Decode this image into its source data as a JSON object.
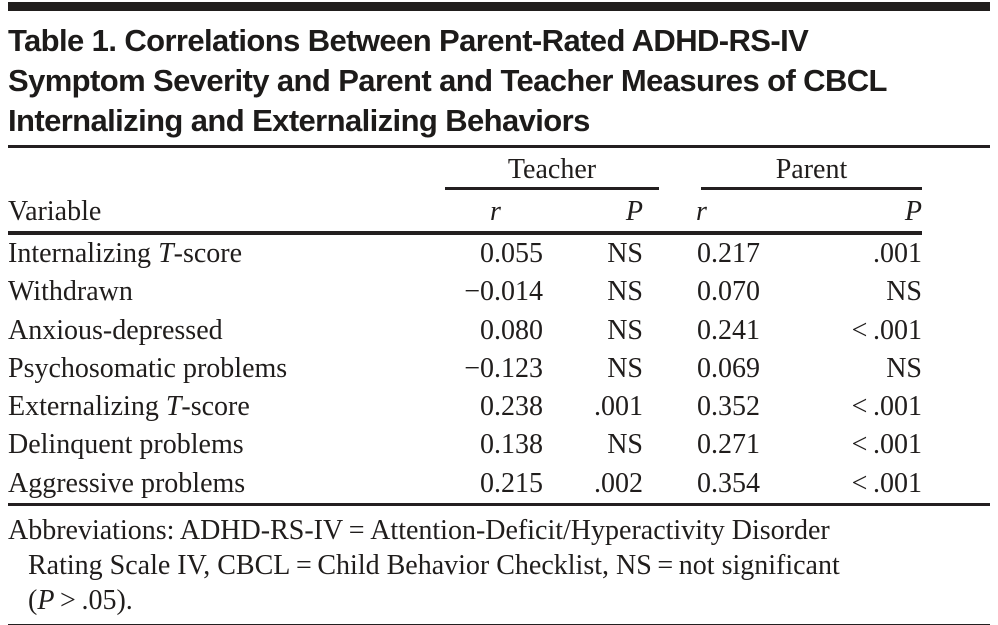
{
  "page": {
    "title_lines": [
      "Table 1. Correlations Between Parent-Rated ADHD-RS-IV",
      "Symptom Severity and Parent and Teacher Measures of CBCL",
      "Internalizing and Externalizing Behaviors"
    ],
    "text_color": "#201d1c",
    "rule_color": "#231f20",
    "background": "#ffffff"
  },
  "table": {
    "groups": {
      "teacher": "Teacher",
      "parent": "Parent"
    },
    "columns": {
      "variable": "Variable",
      "r": "*r*",
      "p": "*P*"
    },
    "rows": [
      {
        "variable": "Internalizing *T*-score",
        "teacher_r": "0.055",
        "teacher_p": "NS",
        "parent_r": "0.217",
        "parent_p": ".001"
      },
      {
        "variable": "Withdrawn",
        "teacher_r": "−0.014",
        "teacher_p": "NS",
        "parent_r": "0.070",
        "parent_p": "NS"
      },
      {
        "variable": "Anxious-depressed",
        "teacher_r": "0.080",
        "teacher_p": "NS",
        "parent_r": "0.241",
        "parent_p": "< .001"
      },
      {
        "variable": "Psychosomatic problems",
        "teacher_r": "−0.123",
        "teacher_p": "NS",
        "parent_r": "0.069",
        "parent_p": "NS"
      },
      {
        "variable": "Externalizing *T*-score",
        "teacher_r": "0.238",
        "teacher_p": ".001",
        "parent_r": "0.352",
        "parent_p": "< .001"
      },
      {
        "variable": "Delinquent problems",
        "teacher_r": "0.138",
        "teacher_p": "NS",
        "parent_r": "0.271",
        "parent_p": "< .001"
      },
      {
        "variable": "Aggressive problems",
        "teacher_r": "0.215",
        "teacher_p": ".002",
        "parent_r": "0.354",
        "parent_p": "< .001"
      }
    ]
  },
  "footnote": {
    "line1": "Abbreviations: ADHD-RS-IV = Attention-Deficit/Hyperactivity Disorder",
    "line2": "Rating Scale IV, CBCL = Child Behavior Checklist, NS = not significant",
    "line3": "(*P* > .05)."
  }
}
